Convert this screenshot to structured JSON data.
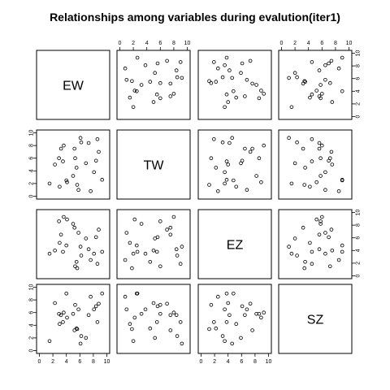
{
  "chart_data": {
    "type": "scatter",
    "title": "Relationships among variables during evalution(iter1)",
    "variables": [
      "EW",
      "TW",
      "EZ",
      "SZ"
    ],
    "axis_range": [
      0,
      10
    ],
    "ticks": [
      0,
      2,
      4,
      6,
      8,
      10
    ],
    "grid": false,
    "legend": "none",
    "data": {
      "EW": [
        1.5,
        2.3,
        2.9,
        3.0,
        3.2,
        3.5,
        3.6,
        4.0,
        5.5,
        5.8,
        5.3,
        5.0,
        5.2,
        6.2,
        6.1,
        5.6,
        4.1,
        6.9,
        7.3,
        7.6,
        8.1,
        8.4,
        8.6,
        9.3,
        8.8
      ],
      "TW": [
        2.0,
        5.0,
        6.0,
        1.5,
        7.5,
        5.5,
        8.0,
        2.5,
        4.5,
        1.0,
        6.0,
        3.2,
        7.5,
        8.5,
        9.2,
        1.8,
        2.2,
        5.2,
        8.4,
        0.8,
        3.8,
        5.6,
        9.0,
        2.6,
        7.0
      ],
      "EZ": [
        3.5,
        4.0,
        8.6,
        5.2,
        6.5,
        3.8,
        9.3,
        4.8,
        2.2,
        6.8,
        1.5,
        8.2,
        7.6,
        3.2,
        4.6,
        1.2,
        8.9,
        5.9,
        4.2,
        2.5,
        3.5,
        6.1,
        1.9,
        3.8,
        7.3
      ],
      "SZ": [
        1.5,
        7.5,
        5.8,
        4.2,
        5.6,
        4.5,
        6.0,
        9.0,
        3.5,
        6.5,
        7.2,
        5.8,
        3.2,
        2.3,
        1.1,
        3.4,
        5.2,
        2.0,
        5.6,
        8.5,
        6.5,
        7.0,
        4.5,
        9.0,
        7.4
      ]
    }
  }
}
